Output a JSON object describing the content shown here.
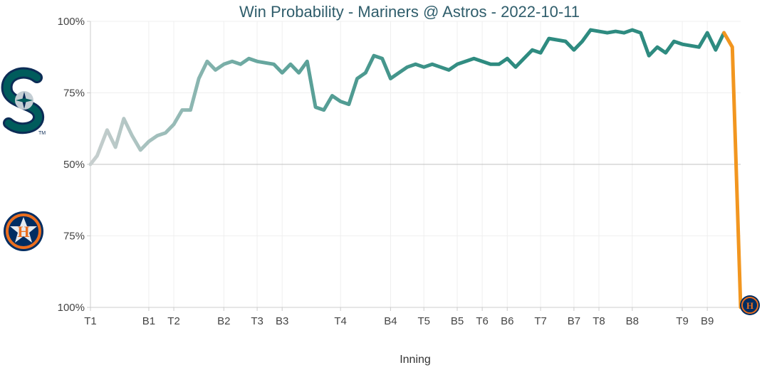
{
  "chart_data": {
    "type": "line",
    "title": "Win Probability - Mariners @ Astros - 2022-10-11",
    "xlabel": "Inning",
    "ylabel": "",
    "y_ticks": [
      "100%",
      "75%",
      "50%",
      "75%",
      "100%"
    ],
    "y_tick_values": [
      100,
      75,
      50,
      25,
      0
    ],
    "ylim": [
      0,
      100
    ],
    "x_ticks": [
      "T1",
      "B1",
      "T2",
      "B2",
      "T3",
      "B3",
      "T4",
      "B4",
      "T5",
      "B5",
      "T6",
      "B6",
      "T7",
      "B7",
      "T8",
      "B8",
      "T9",
      "B9"
    ],
    "x_tick_positions": [
      0,
      7,
      10,
      16,
      20,
      23,
      30,
      36,
      40,
      44,
      47,
      50,
      54,
      58,
      61,
      65,
      71,
      74
    ],
    "xlim": [
      0,
      78
    ],
    "teams": {
      "top": {
        "name": "Mariners",
        "logo_icon": "mariners-logo-icon",
        "color": "#2e8b80"
      },
      "bottom": {
        "name": "Astros",
        "logo_icon": "astros-logo-icon",
        "color": "#f2961f"
      }
    },
    "series": [
      {
        "name": "Mariners win probability",
        "x": [
          0,
          0.8,
          2,
          3,
          4,
          5,
          6,
          7,
          8,
          9,
          10,
          11,
          12,
          13,
          14,
          15,
          16,
          17,
          18,
          19,
          20,
          21,
          22,
          23,
          24,
          25,
          26,
          27,
          28,
          29,
          30,
          31,
          32,
          33,
          34,
          35,
          36,
          37,
          38,
          39,
          40,
          41,
          42,
          43,
          44,
          45,
          46,
          47,
          48,
          49,
          50,
          51,
          52,
          53,
          54,
          55,
          56,
          57,
          58,
          59,
          60,
          61,
          62,
          63,
          64,
          65,
          66,
          67,
          68,
          69,
          70,
          71,
          72,
          73,
          74,
          75,
          76,
          77,
          78
        ],
        "y": [
          50,
          53,
          62,
          56,
          66,
          60,
          55,
          58,
          60,
          61,
          64,
          69,
          69,
          80,
          86,
          83,
          85,
          86,
          85,
          87,
          86,
          85.5,
          85,
          82,
          85,
          82,
          86,
          70,
          69,
          74,
          72,
          71,
          80,
          82,
          88,
          87,
          80,
          82,
          84,
          85,
          84,
          85,
          84,
          83,
          85,
          86,
          87,
          86,
          85,
          85,
          87,
          84,
          87,
          90,
          89,
          94,
          93.5,
          93,
          90,
          93,
          97,
          96.5,
          96,
          96.5,
          96,
          97,
          96,
          88,
          91,
          89,
          93,
          92,
          91.5,
          91,
          96,
          90,
          96,
          91,
          0
        ]
      }
    ],
    "colors": {
      "start": "#c8cfcf",
      "mid": "#6aa8a0",
      "end": "#2e8b80",
      "swing": "#f2961f",
      "grid": "#efefef",
      "midline": "#c0c0c0",
      "axis": "#cccccc",
      "title": "#2f5d6b"
    }
  }
}
